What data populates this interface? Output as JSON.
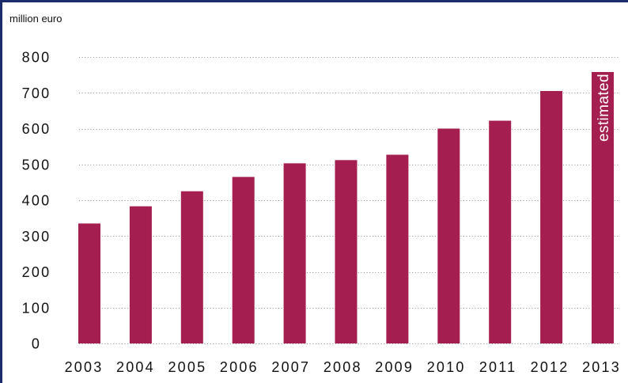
{
  "chart_data": {
    "type": "bar",
    "ylabel": "million euro",
    "categories": [
      "2003",
      "2004",
      "2005",
      "2006",
      "2007",
      "2008",
      "2009",
      "2010",
      "2011",
      "2012",
      "2013"
    ],
    "values": [
      335,
      383,
      425,
      465,
      503,
      512,
      527,
      600,
      622,
      705,
      758
    ],
    "ylim": [
      0,
      800
    ],
    "yticks": [
      0,
      100,
      200,
      300,
      400,
      500,
      600,
      700,
      800
    ],
    "grid": true,
    "annotations": [
      {
        "category": "2013",
        "text": "estimated"
      }
    ]
  },
  "colors": {
    "bar": "#a41f50",
    "frame": "#1c2b6e",
    "gridline": "#8f8f8f",
    "text": "#111111",
    "annotation_text": "#ffffff"
  }
}
